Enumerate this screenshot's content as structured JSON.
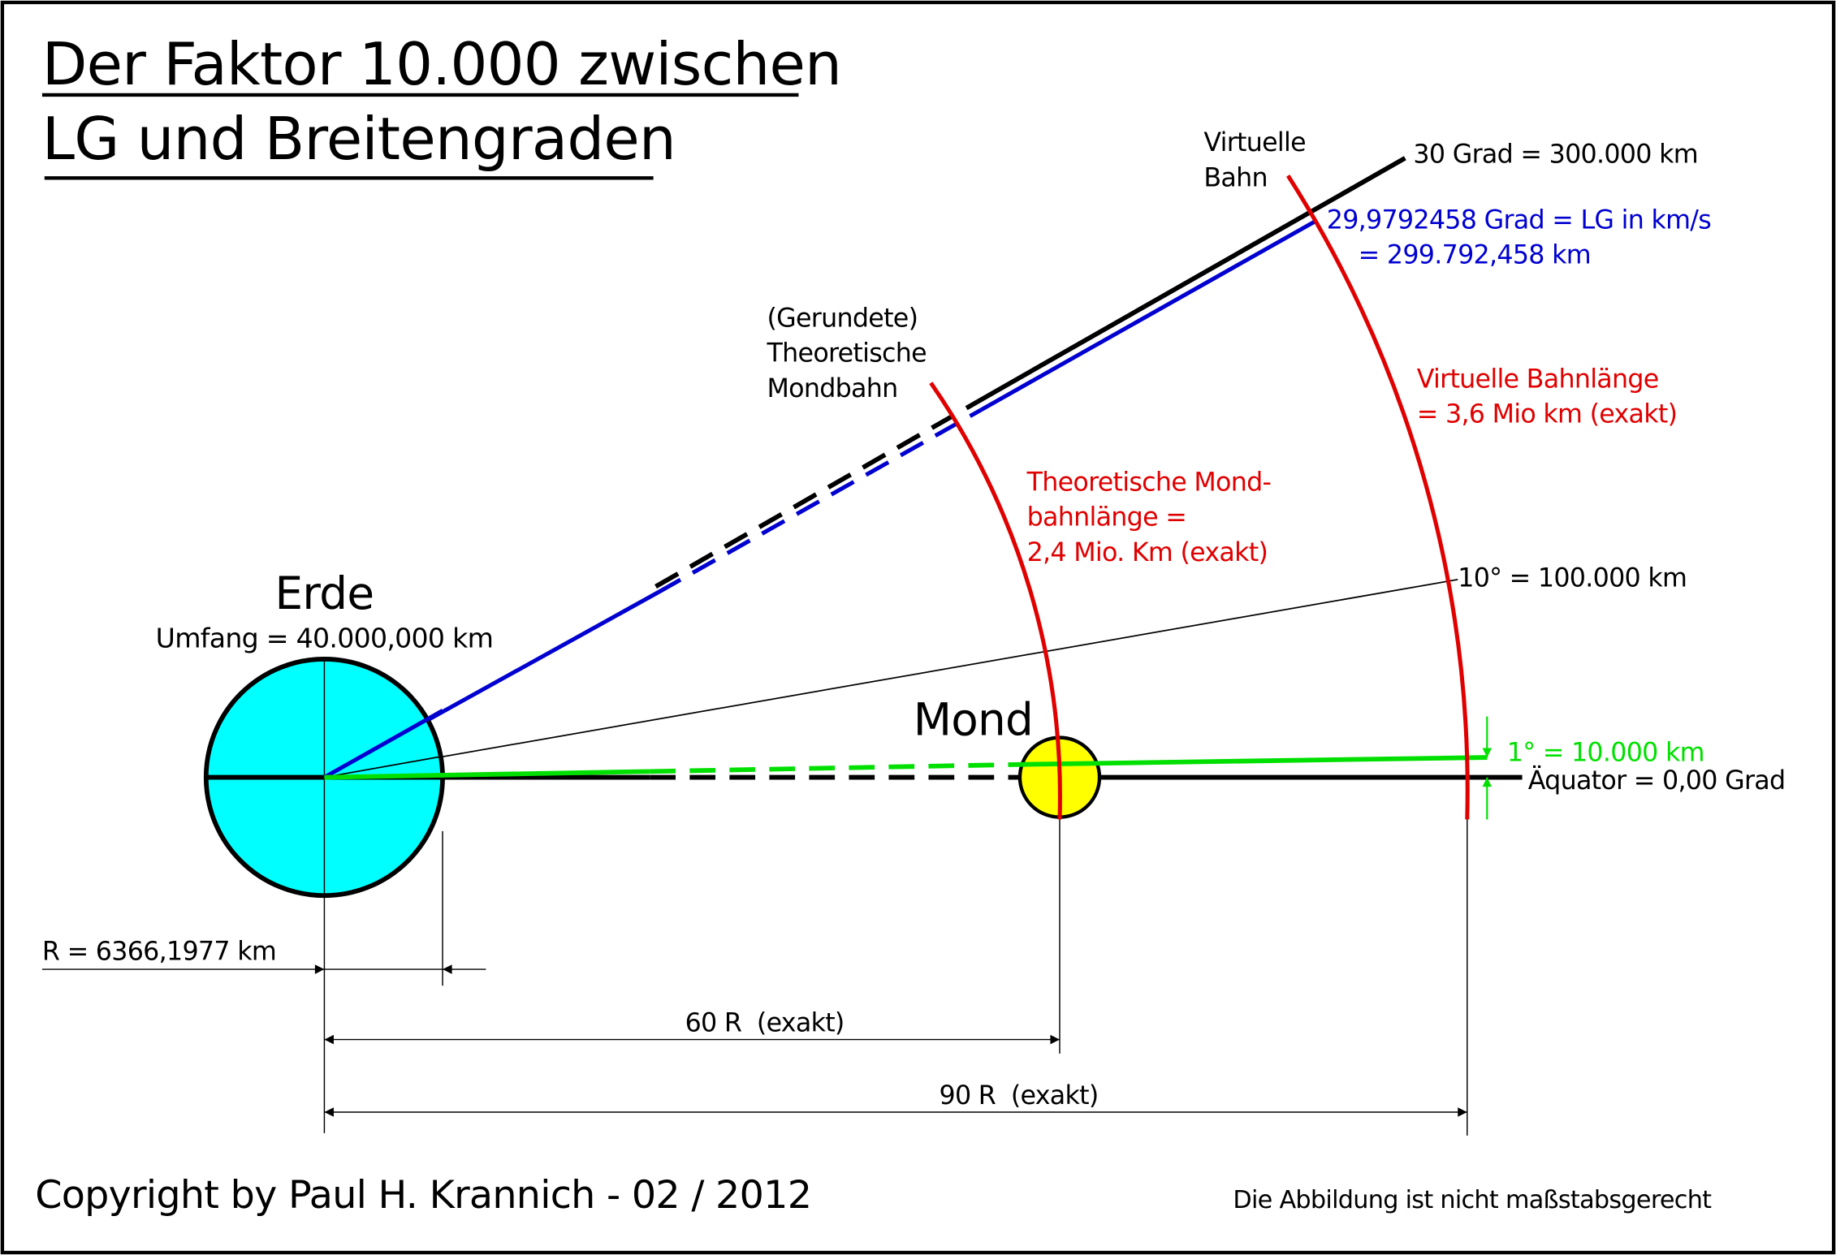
{
  "title": [
    "Der Faktor 10.000 zwischen",
    "LG und Breitengraden"
  ],
  "earth": {
    "label": "Erde",
    "circumference": "Umfang = 40.000,000 km"
  },
  "moon": {
    "label": "Mond"
  },
  "virtual_orbit": {
    "label": [
      "Virtuelle",
      "Bahn"
    ],
    "length": [
      "Virtuelle Bahnlänge",
      "= 3,6 Mio km (exakt)"
    ]
  },
  "theoretical_orbit": {
    "label": [
      "(Gerundete)",
      "Theoretische",
      "Mondbahn"
    ],
    "length": [
      "Theoretische Mond-",
      "bahnlänge =",
      "2,4 Mio. Km (exakt)"
    ]
  },
  "lines": {
    "deg30": "30 Grad = 300.000 km",
    "light_speed": [
      "29,9792458 Grad = LG in km/s",
      "= 299.792,458 km"
    ],
    "deg10": "10° = 100.000 km",
    "deg1": "1° = 10.000 km",
    "equator": "Äquator = 0,00 Grad"
  },
  "dimensions": {
    "radius": "R = 6366,1977 km",
    "moon_distance": "60 R  (exakt)",
    "virtual_distance": "90 R  (exakt)"
  },
  "footer": {
    "copyright": "Copyright by Paul H. Krannich - 02 / 2012",
    "note": "Die Abbildung ist nicht maßstabsgerecht"
  }
}
